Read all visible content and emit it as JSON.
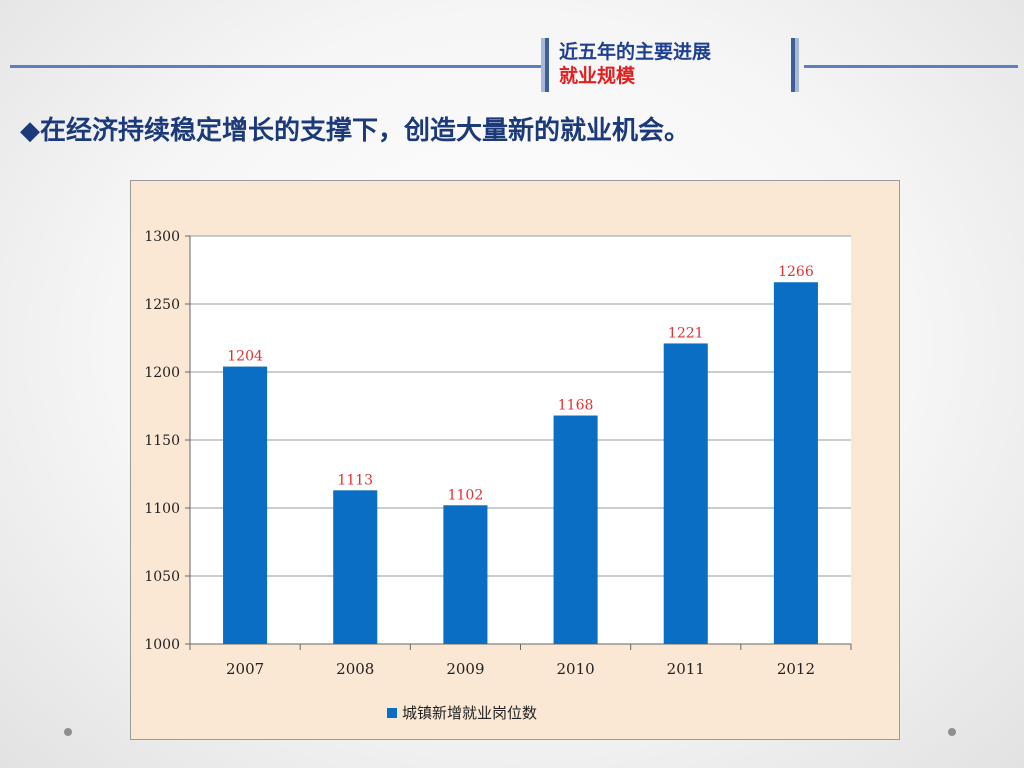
{
  "header": {
    "section_title_line1": "近五年的主要进展",
    "section_title_line2": "就业规模"
  },
  "headline": "◆在经济持续稳定增长的支撑下，创造大量新的就业机会。",
  "colors": {
    "bar": "#0a6ec4",
    "data_label": "#e03030",
    "plot_background": "#ffffff",
    "frame_background": "#fbe8d4",
    "gridline": "#9a9a9a",
    "headline_text": "#1c3a7a",
    "title_red": "#e02020"
  },
  "chart_data": {
    "type": "bar",
    "title": "",
    "xlabel": "",
    "ylabel": "",
    "categories": [
      "2007",
      "2008",
      "2009",
      "2010",
      "2011",
      "2012"
    ],
    "series": [
      {
        "name": "城镇新增就业岗位数",
        "values": [
          1204,
          1113,
          1102,
          1168,
          1221,
          1266
        ]
      }
    ],
    "ylim": [
      1000,
      1300
    ],
    "yticks": [
      1000,
      1050,
      1100,
      1150,
      1200,
      1250,
      1300
    ],
    "grid": true,
    "data_labels": true,
    "legend_position": "bottom"
  }
}
